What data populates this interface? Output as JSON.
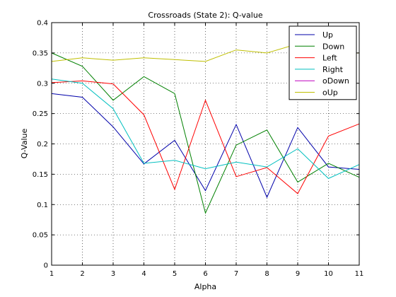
{
  "chart_data": {
    "type": "line",
    "title": "Crossroads (State 2): Q-value",
    "xlabel": "Alpha",
    "ylabel": "Q-Value",
    "x": [
      1,
      2,
      3,
      4,
      5,
      6,
      7,
      8,
      9,
      10,
      11
    ],
    "xlim": [
      1,
      11
    ],
    "ylim": [
      0,
      0.4
    ],
    "xticks": [
      "1",
      "2",
      "3",
      "4",
      "5",
      "6",
      "7",
      "8",
      "9",
      "10",
      "11"
    ],
    "yticks": [
      "0",
      "0.05",
      "0.1",
      "0.15",
      "0.2",
      "0.25",
      "0.3",
      "0.35",
      "0.4"
    ],
    "grid": true,
    "legend_position": "top-right",
    "series": [
      {
        "name": "Up",
        "color": "#0000aa",
        "values": [
          0.283,
          0.277,
          0.228,
          0.167,
          0.206,
          0.123,
          0.232,
          0.112,
          0.227,
          0.162,
          0.158
        ]
      },
      {
        "name": "Down",
        "color": "#008000",
        "values": [
          0.35,
          0.328,
          0.272,
          0.311,
          0.283,
          0.086,
          0.198,
          0.223,
          0.137,
          0.168,
          0.145
        ]
      },
      {
        "name": "Left",
        "color": "#ff0000",
        "values": [
          0.301,
          0.304,
          0.299,
          0.248,
          0.125,
          0.272,
          0.146,
          0.161,
          0.118,
          0.213,
          0.233
        ]
      },
      {
        "name": "Right",
        "color": "#00bfbf",
        "values": [
          0.307,
          0.3,
          0.258,
          0.168,
          0.173,
          0.159,
          0.17,
          0.162,
          0.192,
          0.143,
          0.166
        ]
      },
      {
        "name": "oDown",
        "color": "#bf00bf",
        "values": [
          null,
          null,
          null,
          null,
          null,
          null,
          null,
          null,
          null,
          null,
          null
        ]
      },
      {
        "name": "oUp",
        "color": "#bfbf00",
        "values": [
          0.336,
          0.342,
          0.338,
          0.342,
          0.339,
          0.336,
          0.355,
          0.35,
          0.365,
          0.348,
          0.35
        ]
      }
    ]
  }
}
